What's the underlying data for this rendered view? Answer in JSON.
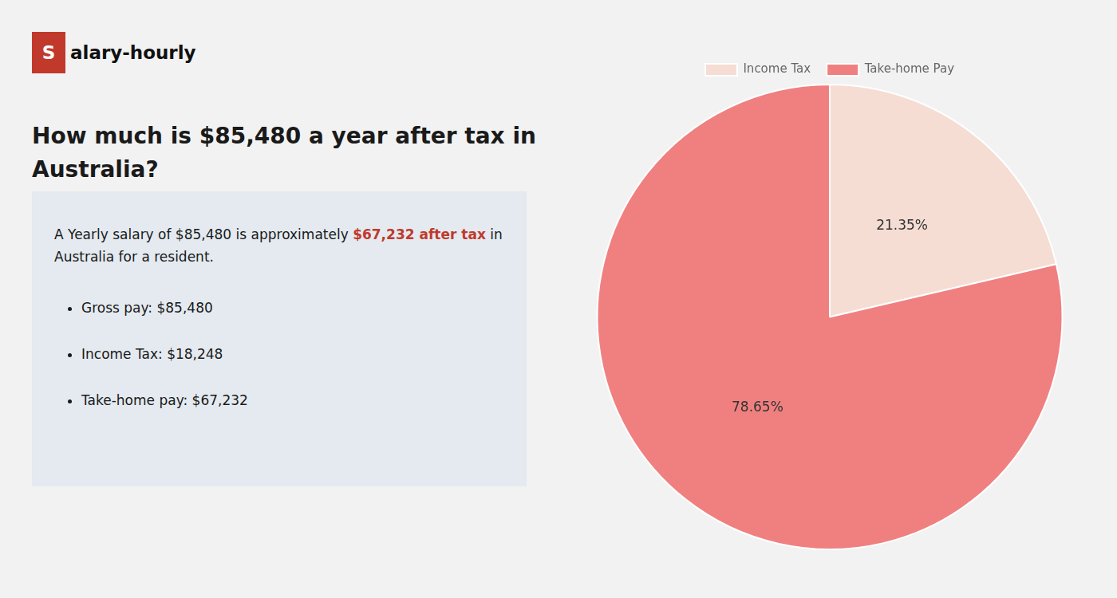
{
  "chart_data": {
    "type": "pie",
    "title": [
      "How much is $85,480 a year after tax in",
      "Australia?"
    ],
    "title_color": "#1a1a1a",
    "background_color": "#f2f2f2",
    "logo": [
      {
        "text": "S",
        "color": "#ffffff",
        "background": "#c0392b"
      },
      {
        "text": "alary-hourly",
        "color": "#111111"
      }
    ],
    "info_box_color": "#e4eaf0",
    "text_color": "#1a1a1a",
    "summary": [
      {
        "text": "A Yearly salary of $85,480 is approximately ",
        "color": "#1a1a1a"
      },
      {
        "text": "$67,232 after tax",
        "color": "#c0392b"
      },
      {
        "text": " in",
        "color": "#1a1a1a"
      },
      {
        "text": " Australia for a resident.",
        "color": "#1a1a1a"
      }
    ],
    "bullets": [
      "Gross pay: $85,480",
      "Income Tax: $18,248",
      "Take-home pay: $67,232"
    ],
    "categories": [
      "Income Tax",
      "Take-home Pay"
    ],
    "values": [
      21.35,
      78.65
    ],
    "value_labels": [
      "21.35%",
      "78.65%"
    ],
    "colors": [
      "#f5ddd3",
      "#f08080"
    ],
    "data_labels": true,
    "legend": "top"
  }
}
